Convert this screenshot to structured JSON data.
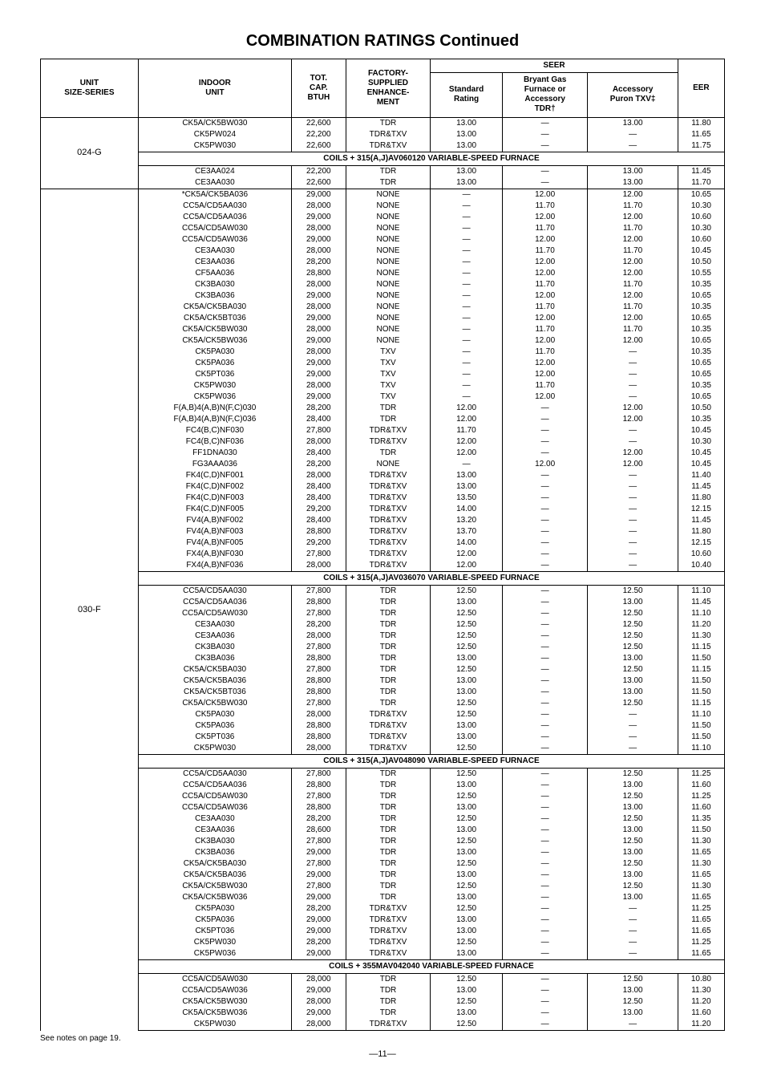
{
  "title": "COMBINATION RATINGS Continued",
  "headers": {
    "unit": "UNIT\nSIZE-SERIES",
    "indoor": "INDOOR\nUNIT",
    "cap": "TOT.\nCAP.\nBTUH",
    "enh": "FACTORY-\nSUPPLIED\nENHANCE-\nMENT",
    "seer": "SEER",
    "std": "Standard\nRating",
    "tdr": "Bryant Gas\nFurnace or\nAccessory\nTDR†",
    "txv": "Accessory\nPuron TXV‡",
    "eer": "EER"
  },
  "footnote": "See notes on page 19.",
  "pagenum": "—11—",
  "units": [
    {
      "label": "024-G",
      "sections": [
        {
          "rows": [
            [
              "CK5A/CK5BW030",
              "22,600",
              "TDR",
              "13.00",
              "—",
              "13.00",
              "11.80"
            ],
            [
              "CK5PW024",
              "22,200",
              "TDR&TXV",
              "13.00",
              "—",
              "—",
              "11.65"
            ],
            [
              "CK5PW030",
              "22,600",
              "TDR&TXV",
              "13.00",
              "—",
              "—",
              "11.75"
            ]
          ]
        },
        {
          "title": "COILS + 315(A,J)AV060120 VARIABLE-SPEED FURNACE",
          "rows": [
            [
              "CE3AA024",
              "22,200",
              "TDR",
              "13.00",
              "—",
              "13.00",
              "11.45"
            ],
            [
              "CE3AA030",
              "22,600",
              "TDR",
              "13.00",
              "—",
              "13.00",
              "11.70"
            ]
          ]
        }
      ]
    },
    {
      "label": "030-F",
      "sections": [
        {
          "rows": [
            [
              "*CK5A/CK5BA036",
              "29,000",
              "NONE",
              "—",
              "12.00",
              "12.00",
              "10.65"
            ],
            [
              "CC5A/CD5AA030",
              "28,000",
              "NONE",
              "—",
              "11.70",
              "11.70",
              "10.30"
            ],
            [
              "CC5A/CD5AA036",
              "29,000",
              "NONE",
              "—",
              "12.00",
              "12.00",
              "10.60"
            ],
            [
              "CC5A/CD5AW030",
              "28,000",
              "NONE",
              "—",
              "11.70",
              "11.70",
              "10.30"
            ],
            [
              "CC5A/CD5AW036",
              "29,000",
              "NONE",
              "—",
              "12.00",
              "12.00",
              "10.60"
            ],
            [
              "CE3AA030",
              "28,000",
              "NONE",
              "—",
              "11.70",
              "11.70",
              "10.45"
            ],
            [
              "CE3AA036",
              "28,200",
              "NONE",
              "—",
              "12.00",
              "12.00",
              "10.50"
            ],
            [
              "CF5AA036",
              "28,800",
              "NONE",
              "—",
              "12.00",
              "12.00",
              "10.55"
            ],
            [
              "CK3BA030",
              "28,000",
              "NONE",
              "—",
              "11.70",
              "11.70",
              "10.35"
            ],
            [
              "CK3BA036",
              "29,000",
              "NONE",
              "—",
              "12.00",
              "12.00",
              "10.65"
            ],
            [
              "CK5A/CK5BA030",
              "28,000",
              "NONE",
              "—",
              "11.70",
              "11.70",
              "10.35"
            ],
            [
              "CK5A/CK5BT036",
              "29,000",
              "NONE",
              "—",
              "12.00",
              "12.00",
              "10.65"
            ],
            [
              "CK5A/CK5BW030",
              "28,000",
              "NONE",
              "—",
              "11.70",
              "11.70",
              "10.35"
            ],
            [
              "CK5A/CK5BW036",
              "29,000",
              "NONE",
              "—",
              "12.00",
              "12.00",
              "10.65"
            ],
            [
              "CK5PA030",
              "28,000",
              "TXV",
              "—",
              "11.70",
              "—",
              "10.35"
            ],
            [
              "CK5PA036",
              "29,000",
              "TXV",
              "—",
              "12.00",
              "—",
              "10.65"
            ],
            [
              "CK5PT036",
              "29,000",
              "TXV",
              "—",
              "12.00",
              "—",
              "10.65"
            ],
            [
              "CK5PW030",
              "28,000",
              "TXV",
              "—",
              "11.70",
              "—",
              "10.35"
            ],
            [
              "CK5PW036",
              "29,000",
              "TXV",
              "—",
              "12.00",
              "—",
              "10.65"
            ],
            [
              "F(A,B)4(A,B)N(F,C)030",
              "28,200",
              "TDR",
              "12.00",
              "—",
              "12.00",
              "10.50"
            ],
            [
              "F(A,B)4(A,B)N(F,C)036",
              "28,400",
              "TDR",
              "12.00",
              "—",
              "12.00",
              "10.35"
            ],
            [
              "FC4(B,C)NF030",
              "27,800",
              "TDR&TXV",
              "11.70",
              "—",
              "—",
              "10.45"
            ],
            [
              "FC4(B,C)NF036",
              "28,000",
              "TDR&TXV",
              "12.00",
              "—",
              "—",
              "10.30"
            ],
            [
              "FF1DNA030",
              "28,400",
              "TDR",
              "12.00",
              "—",
              "12.00",
              "10.45"
            ],
            [
              "FG3AAA036",
              "28,200",
              "NONE",
              "—",
              "12.00",
              "12.00",
              "10.45"
            ],
            [
              "FK4(C,D)NF001",
              "28,000",
              "TDR&TXV",
              "13.00",
              "—",
              "—",
              "11.40"
            ],
            [
              "FK4(C,D)NF002",
              "28,400",
              "TDR&TXV",
              "13.00",
              "—",
              "—",
              "11.45"
            ],
            [
              "FK4(C,D)NF003",
              "28,400",
              "TDR&TXV",
              "13.50",
              "—",
              "—",
              "11.80"
            ],
            [
              "FK4(C,D)NF005",
              "29,200",
              "TDR&TXV",
              "14.00",
              "—",
              "—",
              "12.15"
            ],
            [
              "FV4(A,B)NF002",
              "28,400",
              "TDR&TXV",
              "13.20",
              "—",
              "—",
              "11.45"
            ],
            [
              "FV4(A,B)NF003",
              "28,800",
              "TDR&TXV",
              "13.70",
              "—",
              "—",
              "11.80"
            ],
            [
              "FV4(A,B)NF005",
              "29,200",
              "TDR&TXV",
              "14.00",
              "—",
              "—",
              "12.15"
            ],
            [
              "FX4(A,B)NF030",
              "27,800",
              "TDR&TXV",
              "12.00",
              "—",
              "—",
              "10.60"
            ],
            [
              "FX4(A,B)NF036",
              "28,000",
              "TDR&TXV",
              "12.00",
              "—",
              "—",
              "10.40"
            ]
          ]
        },
        {
          "title": "COILS + 315(A,J)AV036070 VARIABLE-SPEED FURNACE",
          "rows": [
            [
              "CC5A/CD5AA030",
              "27,800",
              "TDR",
              "12.50",
              "—",
              "12.50",
              "11.10"
            ],
            [
              "CC5A/CD5AA036",
              "28,800",
              "TDR",
              "13.00",
              "—",
              "13.00",
              "11.45"
            ],
            [
              "CC5A/CD5AW030",
              "27,800",
              "TDR",
              "12.50",
              "—",
              "12.50",
              "11.10"
            ],
            [
              "CE3AA030",
              "28,200",
              "TDR",
              "12.50",
              "—",
              "12.50",
              "11.20"
            ],
            [
              "CE3AA036",
              "28,000",
              "TDR",
              "12.50",
              "—",
              "12.50",
              "11.30"
            ],
            [
              "CK3BA030",
              "27,800",
              "TDR",
              "12.50",
              "—",
              "12.50",
              "11.15"
            ],
            [
              "CK3BA036",
              "28,800",
              "TDR",
              "13.00",
              "—",
              "13.00",
              "11.50"
            ],
            [
              "CK5A/CK5BA030",
              "27,800",
              "TDR",
              "12.50",
              "—",
              "12.50",
              "11.15"
            ],
            [
              "CK5A/CK5BA036",
              "28,800",
              "TDR",
              "13.00",
              "—",
              "13.00",
              "11.50"
            ],
            [
              "CK5A/CK5BT036",
              "28,800",
              "TDR",
              "13.00",
              "—",
              "13.00",
              "11.50"
            ],
            [
              "CK5A/CK5BW030",
              "27,800",
              "TDR",
              "12.50",
              "—",
              "12.50",
              "11.15"
            ],
            [
              "CK5PA030",
              "28,000",
              "TDR&TXV",
              "12.50",
              "—",
              "—",
              "11.10"
            ],
            [
              "CK5PA036",
              "28,800",
              "TDR&TXV",
              "13.00",
              "—",
              "—",
              "11.50"
            ],
            [
              "CK5PT036",
              "28,800",
              "TDR&TXV",
              "13.00",
              "—",
              "—",
              "11.50"
            ],
            [
              "CK5PW030",
              "28,000",
              "TDR&TXV",
              "12.50",
              "—",
              "—",
              "11.10"
            ]
          ]
        },
        {
          "title": "COILS + 315(A,J)AV048090 VARIABLE-SPEED FURNACE",
          "rows": [
            [
              "CC5A/CD5AA030",
              "27,800",
              "TDR",
              "12.50",
              "—",
              "12.50",
              "11.25"
            ],
            [
              "CC5A/CD5AA036",
              "28,800",
              "TDR",
              "13.00",
              "—",
              "13.00",
              "11.60"
            ],
            [
              "CC5A/CD5AW030",
              "27,800",
              "TDR",
              "12.50",
              "—",
              "12.50",
              "11.25"
            ],
            [
              "CC5A/CD5AW036",
              "28,800",
              "TDR",
              "13.00",
              "—",
              "13.00",
              "11.60"
            ],
            [
              "CE3AA030",
              "28,200",
              "TDR",
              "12.50",
              "—",
              "12.50",
              "11.35"
            ],
            [
              "CE3AA036",
              "28,600",
              "TDR",
              "13.00",
              "—",
              "13.00",
              "11.50"
            ],
            [
              "CK3BA030",
              "27,800",
              "TDR",
              "12.50",
              "—",
              "12.50",
              "11.30"
            ],
            [
              "CK3BA036",
              "29,000",
              "TDR",
              "13.00",
              "—",
              "13.00",
              "11.65"
            ],
            [
              "CK5A/CK5BA030",
              "27,800",
              "TDR",
              "12.50",
              "—",
              "12.50",
              "11.30"
            ],
            [
              "CK5A/CK5BA036",
              "29,000",
              "TDR",
              "13.00",
              "—",
              "13.00",
              "11.65"
            ],
            [
              "CK5A/CK5BW030",
              "27,800",
              "TDR",
              "12.50",
              "—",
              "12.50",
              "11.30"
            ],
            [
              "CK5A/CK5BW036",
              "29,000",
              "TDR",
              "13.00",
              "—",
              "13.00",
              "11.65"
            ],
            [
              "CK5PA030",
              "28,200",
              "TDR&TXV",
              "12.50",
              "—",
              "—",
              "11.25"
            ],
            [
              "CK5PA036",
              "29,000",
              "TDR&TXV",
              "13.00",
              "—",
              "—",
              "11.65"
            ],
            [
              "CK5PT036",
              "29,000",
              "TDR&TXV",
              "13.00",
              "—",
              "—",
              "11.65"
            ],
            [
              "CK5PW030",
              "28,200",
              "TDR&TXV",
              "12.50",
              "—",
              "—",
              "11.25"
            ],
            [
              "CK5PW036",
              "29,000",
              "TDR&TXV",
              "13.00",
              "—",
              "—",
              "11.65"
            ]
          ]
        },
        {
          "title": "COILS + 355MAV042040 VARIABLE-SPEED FURNACE",
          "rows": [
            [
              "CC5A/CD5AW030",
              "28,000",
              "TDR",
              "12.50",
              "—",
              "12.50",
              "10.80"
            ],
            [
              "CC5A/CD5AW036",
              "29,000",
              "TDR",
              "13.00",
              "—",
              "13.00",
              "11.30"
            ],
            [
              "CK5A/CK5BW030",
              "28,000",
              "TDR",
              "12.50",
              "—",
              "12.50",
              "11.20"
            ],
            [
              "CK5A/CK5BW036",
              "29,000",
              "TDR",
              "13.00",
              "—",
              "13.00",
              "11.60"
            ],
            [
              "CK5PW030",
              "28,000",
              "TDR&TXV",
              "12.50",
              "—",
              "—",
              "11.20"
            ]
          ]
        }
      ]
    }
  ]
}
